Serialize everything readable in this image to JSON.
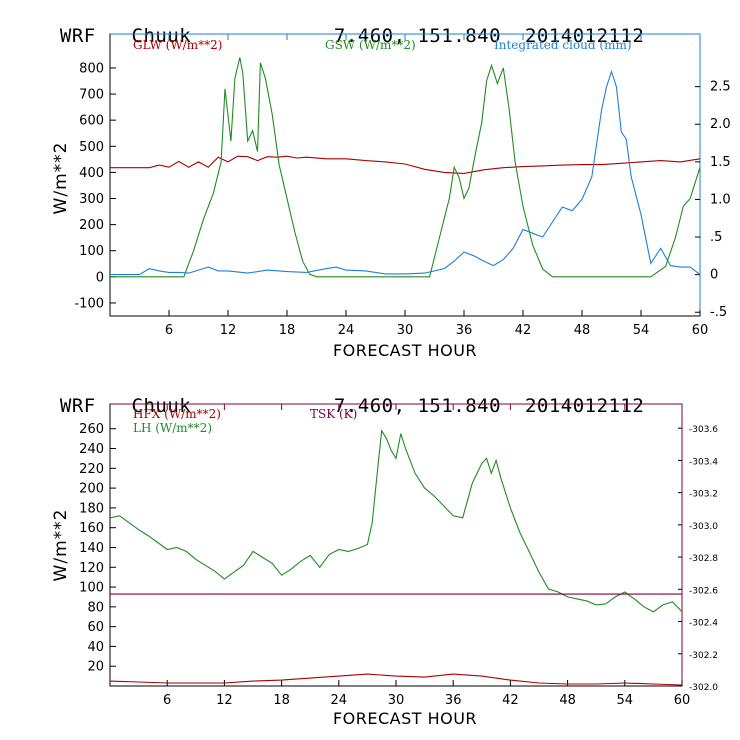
{
  "top_header": {
    "model": "WRF",
    "station": "Chuuk",
    "coords": "7.460, 151.840",
    "run": "2014012112"
  },
  "bottom_header": {
    "model": "WRF",
    "station": "Chuuk",
    "coords": "7.460, 151.840",
    "run": "2014012112"
  },
  "chart_data": [
    {
      "type": "line",
      "title": "WRF Chuuk 7.460, 151.840 2014012112",
      "xlabel": "FORECAST HOUR",
      "ylabel": "W/m**2",
      "xlim": [
        0,
        60
      ],
      "ylim": [
        -150,
        930
      ],
      "yticks": [
        -100,
        0,
        100,
        200,
        300,
        400,
        500,
        600,
        700,
        800
      ],
      "xticks": [
        6,
        12,
        18,
        24,
        30,
        36,
        42,
        48,
        54,
        60
      ],
      "y2lim": [
        -0.55,
        3.2
      ],
      "y2ticks": [
        -0.5,
        0,
        0.5,
        1.0,
        1.5,
        2.0,
        2.5
      ],
      "y2ticklabels": [
        "-.5",
        "0",
        ".5",
        "1.0",
        "1.5",
        "2.0",
        "2.5"
      ],
      "series": [
        {
          "name": "GLW (W/m**2)",
          "color": "#aa0000",
          "axis": "left",
          "x": [
            0,
            4,
            5,
            6,
            7,
            8,
            9,
            10,
            11,
            12,
            13,
            14,
            15,
            16,
            17,
            18,
            19,
            20,
            22,
            24,
            26,
            28,
            30,
            32,
            34,
            36,
            38,
            40,
            42,
            44,
            46,
            48,
            50,
            52,
            54,
            56,
            58,
            60
          ],
          "values": [
            418,
            418,
            428,
            420,
            442,
            420,
            440,
            420,
            458,
            440,
            462,
            460,
            445,
            460,
            458,
            462,
            455,
            458,
            452,
            452,
            445,
            440,
            432,
            412,
            400,
            396,
            410,
            418,
            422,
            425,
            428,
            430,
            430,
            435,
            440,
            445,
            440,
            452
          ]
        },
        {
          "name": "GSW (W/m**2)",
          "color": "#228b22",
          "axis": "left",
          "x": [
            0,
            7.5,
            8.5,
            9.5,
            10.5,
            11.3,
            11.7,
            12.3,
            12.7,
            13.2,
            13.5,
            14.0,
            14.5,
            15.0,
            15.3,
            15.8,
            16.5,
            17.2,
            18.0,
            18.8,
            19.6,
            20.3,
            21,
            25,
            30,
            32.5,
            33.5,
            34.5,
            35.0,
            35.5,
            36.0,
            36.5,
            37.2,
            37.8,
            38.3,
            38.8,
            39.4,
            40.0,
            40.6,
            41.2,
            42.0,
            43.0,
            44.0,
            45,
            50,
            55,
            56.5,
            57.5,
            58.3,
            59.0,
            59.5,
            60
          ],
          "values": [
            0,
            0,
            100,
            220,
            320,
            440,
            720,
            520,
            760,
            840,
            780,
            520,
            560,
            480,
            820,
            760,
            620,
            430,
            300,
            170,
            60,
            10,
            0,
            0,
            0,
            0,
            150,
            300,
            420,
            380,
            300,
            340,
            480,
            590,
            750,
            810,
            740,
            800,
            640,
            440,
            270,
            120,
            30,
            0,
            0,
            0,
            40,
            150,
            270,
            300,
            360,
            420
          ]
        },
        {
          "name": "Integrated cloud (mm)",
          "color": "#1e7fd6",
          "axis": "right",
          "x": [
            0,
            3,
            4,
            5,
            6,
            7,
            8,
            9,
            10,
            11,
            12,
            14,
            16,
            18,
            20,
            22,
            23,
            24,
            26,
            28,
            30,
            32,
            34,
            35,
            36,
            37,
            38,
            39,
            40,
            41,
            42,
            43,
            44,
            45,
            46,
            47,
            48,
            49,
            50,
            50.5,
            51,
            51.5,
            52,
            52.5,
            53,
            54,
            55,
            56,
            57,
            58,
            59,
            60
          ],
          "values": [
            0,
            0,
            0.08,
            0.05,
            0.03,
            0.03,
            0.02,
            0.06,
            0.1,
            0.05,
            0.05,
            0.02,
            0.06,
            0.04,
            0.03,
            0.08,
            0.1,
            0.06,
            0.05,
            0.01,
            0.01,
            0.02,
            0.08,
            0.18,
            0.3,
            0.25,
            0.18,
            0.12,
            0.2,
            0.35,
            0.6,
            0.55,
            0.5,
            0.7,
            0.9,
            0.85,
            1.0,
            1.3,
            2.2,
            2.5,
            2.7,
            2.5,
            1.9,
            1.8,
            1.3,
            0.8,
            0.15,
            0.35,
            0.12,
            0.1,
            0.1,
            0.0
          ]
        }
      ]
    },
    {
      "type": "line",
      "title": "WRF Chuuk 7.460, 151.840 2014012112",
      "xlabel": "FORECAST HOUR",
      "ylabel": "W/m**2",
      "xlim": [
        0,
        60
      ],
      "ylim": [
        0,
        285
      ],
      "yticks": [
        20,
        40,
        60,
        80,
        100,
        120,
        140,
        160,
        180,
        200,
        220,
        240,
        260
      ],
      "xticks": [
        6,
        12,
        18,
        24,
        30,
        36,
        42,
        48,
        54,
        60
      ],
      "y2lim": [
        302.0,
        303.75
      ],
      "y2ticks": [
        302.0,
        302.2,
        302.4,
        302.6,
        302.8,
        303.0,
        303.2,
        303.4,
        303.6
      ],
      "y2ticklabels": [
        "302.0",
        "302.2",
        "302.4",
        "302.6",
        "302.8",
        "303.0",
        "303.2",
        "303.4",
        "303.6"
      ],
      "series": [
        {
          "name": "HFX (W/m**2)",
          "color": "#aa0000",
          "axis": "left",
          "x": [
            0,
            3,
            6,
            9,
            12,
            15,
            18,
            21,
            24,
            27,
            30,
            33,
            36,
            39,
            42,
            45,
            48,
            51,
            54,
            57,
            60
          ],
          "values": [
            5,
            4,
            3,
            3,
            3,
            5,
            6,
            8,
            10,
            12,
            10,
            9,
            12,
            10,
            6,
            3,
            2,
            2,
            3,
            2,
            1
          ]
        },
        {
          "name": "LH (W/m**2)",
          "color": "#228b22",
          "axis": "left",
          "x": [
            0,
            1,
            2,
            3,
            4,
            5,
            6,
            7,
            8,
            9,
            10,
            11,
            12,
            13,
            14,
            15,
            16,
            17,
            18,
            19,
            20,
            21,
            22,
            23,
            24,
            25,
            26,
            27,
            27.5,
            28,
            28.5,
            29,
            29.5,
            30,
            30.5,
            31,
            32,
            33,
            34,
            35,
            36,
            37,
            38,
            39,
            39.5,
            40,
            40.5,
            41,
            42,
            43,
            44,
            45,
            46,
            47,
            48,
            49,
            50,
            51,
            52,
            53,
            54,
            55,
            56,
            57,
            58,
            59,
            60
          ],
          "values": [
            170,
            172,
            165,
            158,
            152,
            145,
            138,
            140,
            136,
            128,
            122,
            116,
            108,
            115,
            122,
            136,
            130,
            124,
            112,
            118,
            126,
            132,
            120,
            133,
            138,
            136,
            139,
            143,
            165,
            212,
            258,
            250,
            238,
            230,
            255,
            240,
            215,
            200,
            192,
            182,
            172,
            170,
            205,
            225,
            230,
            215,
            228,
            210,
            180,
            155,
            135,
            115,
            98,
            95,
            90,
            88,
            86,
            82,
            83,
            90,
            95,
            88,
            80,
            75,
            82,
            85,
            75
          ]
        },
        {
          "name": "TSK (K)",
          "color": "#800040",
          "axis": "right",
          "x": [
            0,
            60
          ],
          "values": [
            302.57,
            302.57
          ]
        }
      ]
    }
  ]
}
